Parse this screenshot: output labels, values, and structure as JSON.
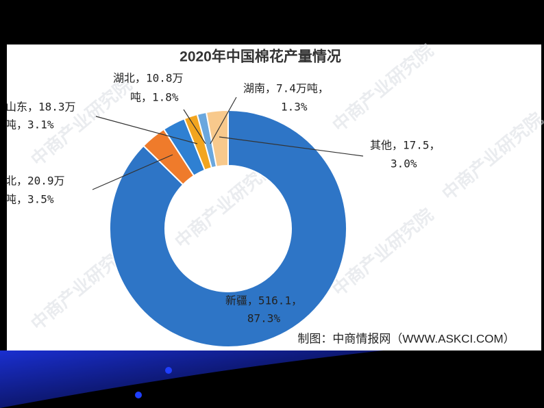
{
  "chart_data": {
    "type": "donut",
    "title": "2020年中国棉花产量情况",
    "values": [
      516.1,
      20.9,
      18.3,
      10.8,
      7.4,
      17.5
    ],
    "value_labels": [
      [
        "新疆，516.1，",
        "87.3%"
      ],
      [
        "北，20.9万",
        "吨，3.5%"
      ],
      [
        "山东，18.3万",
        "吨，3.1%"
      ],
      [
        "湖北，10.8万",
        "吨，1.8%"
      ],
      [
        "湖南，7.4万吨，",
        "1.3%"
      ],
      [
        "其他，17.5，",
        "3.0%"
      ]
    ],
    "colors": [
      "#2e75c6",
      "#ef7b2b",
      "#2f80d2",
      "#f2a51f",
      "#6aa7de",
      "#f8c98c"
    ],
    "source": "制图：中商情报网（WWW.ASKCI.COM）",
    "watermark": "中商产业研究院"
  }
}
